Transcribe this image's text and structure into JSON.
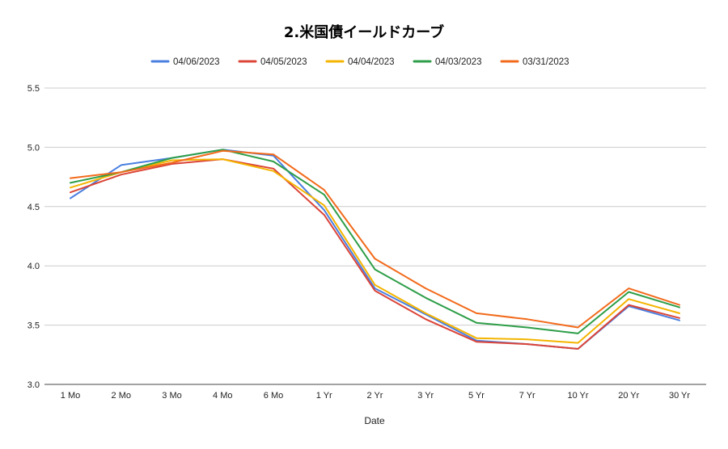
{
  "chart_data": {
    "type": "line",
    "title": "2.米国債イールドカーブ",
    "xlabel": "Date",
    "ylabel": "",
    "categories": [
      "1 Mo",
      "2 Mo",
      "3 Mo",
      "4 Mo",
      "6 Mo",
      "1 Yr",
      "2 Yr",
      "3 Yr",
      "5 Yr",
      "7 Yr",
      "10 Yr",
      "20 Yr",
      "30 Yr"
    ],
    "ylim": [
      3.0,
      5.5
    ],
    "yticks": [
      "3.0",
      "3.5",
      "4.0",
      "4.5",
      "5.0",
      "5.5"
    ],
    "grid": true,
    "legend_position": "top",
    "series": [
      {
        "name": "04/06/2023",
        "color": "#4A7FE0",
        "values": [
          4.57,
          4.85,
          4.91,
          4.98,
          4.93,
          4.47,
          3.81,
          3.59,
          3.37,
          3.34,
          3.3,
          3.66,
          3.54
        ]
      },
      {
        "name": "04/05/2023",
        "color": "#DB4437",
        "values": [
          4.62,
          4.77,
          4.86,
          4.9,
          4.82,
          4.43,
          3.79,
          3.55,
          3.36,
          3.34,
          3.3,
          3.67,
          3.56
        ]
      },
      {
        "name": "04/04/2023",
        "color": "#F4B400",
        "values": [
          4.66,
          4.79,
          4.89,
          4.9,
          4.8,
          4.51,
          3.84,
          3.6,
          3.39,
          3.38,
          3.35,
          3.72,
          3.6
        ]
      },
      {
        "name": "04/03/2023",
        "color": "#2E9E48",
        "values": [
          4.7,
          4.79,
          4.91,
          4.98,
          4.88,
          4.6,
          3.97,
          3.73,
          3.52,
          3.48,
          3.43,
          3.78,
          3.65
        ]
      },
      {
        "name": "03/31/2023",
        "color": "#F26A1B",
        "values": [
          4.74,
          4.79,
          4.87,
          4.97,
          4.94,
          4.64,
          4.06,
          3.81,
          3.6,
          3.55,
          3.48,
          3.81,
          3.67
        ]
      }
    ]
  }
}
